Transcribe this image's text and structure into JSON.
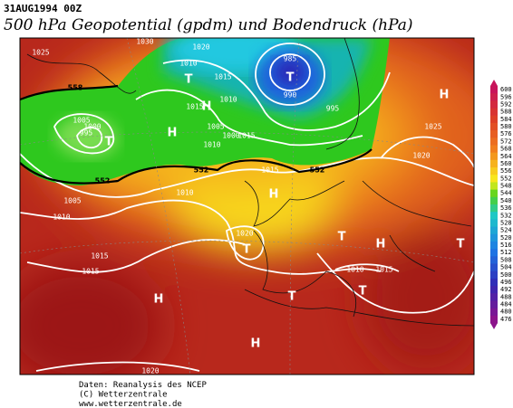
{
  "header": {
    "date": "31AUG1994 00Z",
    "title": "500 hPa Geopotential (gpdm) und Bodendruck (hPa)"
  },
  "map": {
    "isobar_labels": [
      "1030",
      "1025",
      "1020",
      "1010",
      "1015",
      "985",
      "990",
      "995",
      "1005",
      "1000",
      "995",
      "1005",
      "1010",
      "1015",
      "1000",
      "1010",
      "1015",
      "1025",
      "1020",
      "1005",
      "1010",
      "1010",
      "1015",
      "1020",
      "1015",
      "1015",
      "1010",
      "1015",
      "1020"
    ],
    "height_labels": [
      "558",
      "552",
      "552",
      "552"
    ],
    "pressure_centers": [
      "T",
      "T",
      "H",
      "H",
      "T",
      "H",
      "T",
      "T",
      "H",
      "T",
      "T",
      "H",
      "H",
      "T",
      "H"
    ]
  },
  "colorbar": {
    "labels": [
      600,
      596,
      592,
      588,
      584,
      580,
      576,
      572,
      568,
      564,
      560,
      556,
      552,
      548,
      544,
      540,
      536,
      532,
      528,
      524,
      520,
      516,
      512,
      508,
      504,
      500,
      496,
      492,
      488,
      484,
      480,
      476
    ]
  },
  "footer": {
    "lines": [
      "Daten: Reanalysis des NCEP",
      "(C) Wetterzentrale",
      "www.wetterzentrale.de"
    ]
  }
}
